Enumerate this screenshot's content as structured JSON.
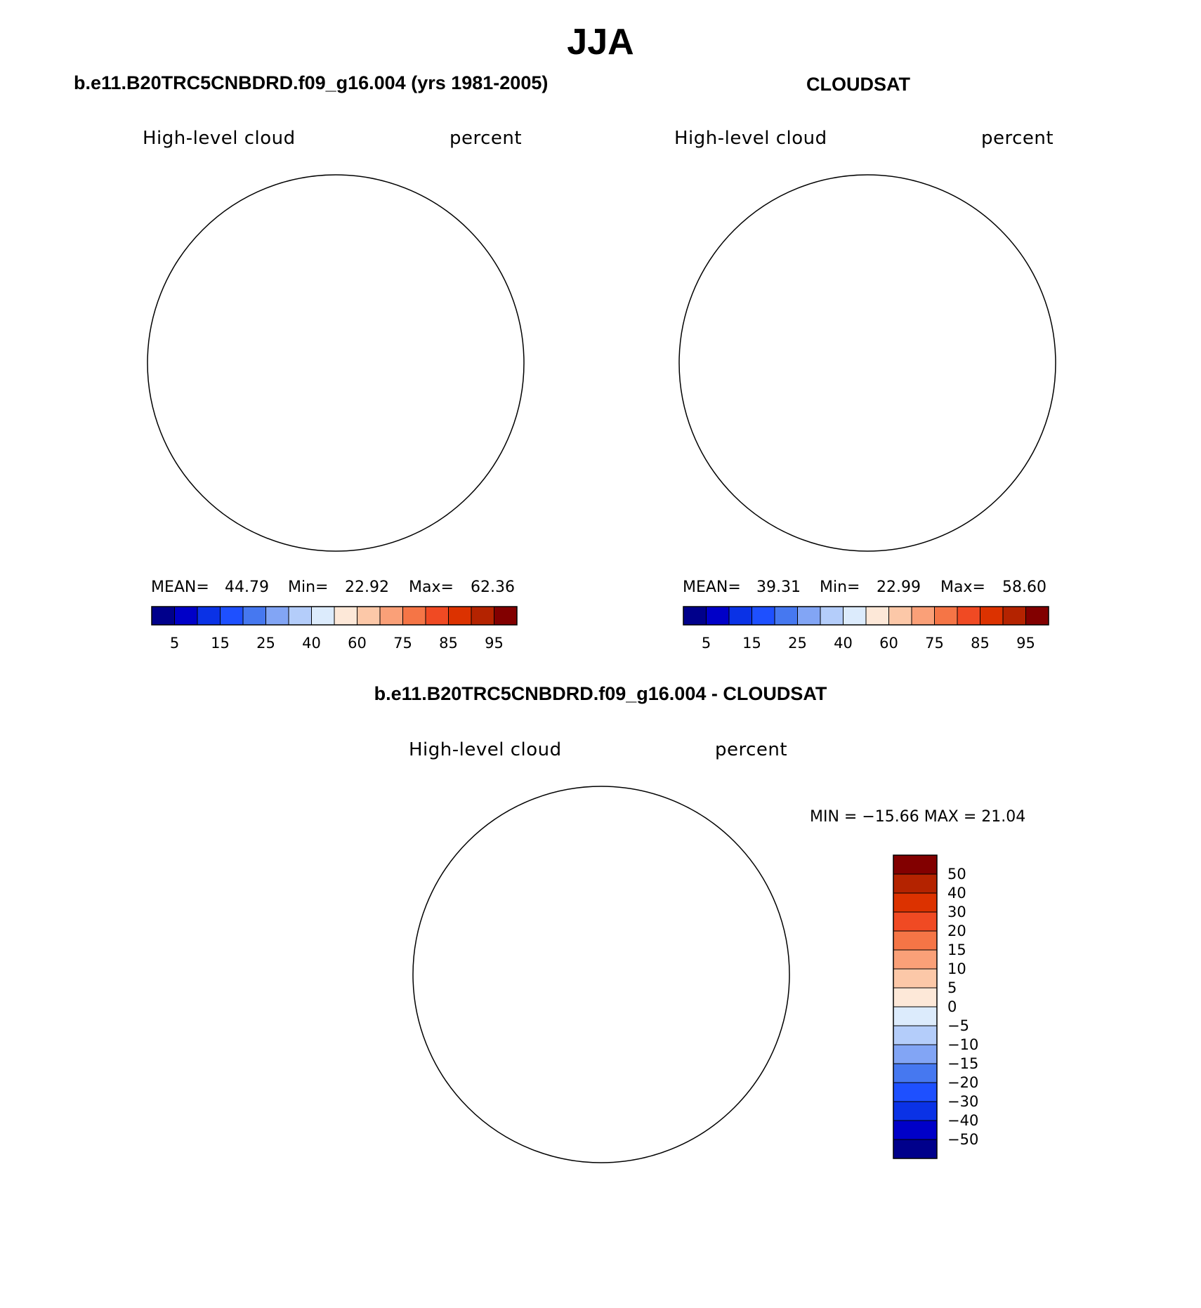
{
  "title": "JJA",
  "panels": [
    {
      "id": "model",
      "title": "b.e11.B20TRC5CNBDRD.f09_g16.004 (yrs 1981-2005)",
      "variable": "High-level cloud",
      "units": "percent",
      "stats": {
        "mean_label": "MEAN=",
        "mean": "44.79",
        "min_label": "Min=",
        "min": "22.92",
        "max_label": "Max=",
        "max": "62.36"
      }
    },
    {
      "id": "obs",
      "title": "CLOUDSAT",
      "variable": "High-level cloud",
      "units": "percent",
      "stats": {
        "mean_label": "MEAN=",
        "mean": "39.31",
        "min_label": "Min=",
        "min": "22.99",
        "max_label": "Max=",
        "max": "58.60"
      }
    },
    {
      "id": "diff",
      "title": "b.e11.B20TRC5CNBDRD.f09_g16.004 - CLOUDSAT",
      "variable": "High-level cloud",
      "units": "percent",
      "stats_text": "MIN = −15.66 MAX =  21.04"
    }
  ],
  "colorbar_abs": {
    "colors": [
      "#00008b",
      "#0000c8",
      "#0a32e6",
      "#1e50ff",
      "#4678f0",
      "#82a5f5",
      "#b4cdfa",
      "#dcebfc",
      "#fde8d8",
      "#fcc8a8",
      "#faa078",
      "#f57546",
      "#f04a23",
      "#dc3200",
      "#b42300",
      "#820000"
    ],
    "labels": [
      "5",
      "15",
      "25",
      "40",
      "60",
      "75",
      "85",
      "95"
    ]
  },
  "colorbar_diff": {
    "colors": [
      "#820000",
      "#b42300",
      "#dc3200",
      "#f04a23",
      "#f57546",
      "#faa078",
      "#fcc8a8",
      "#fde8d8",
      "#dcebfc",
      "#b4cdfa",
      "#82a5f5",
      "#4678f0",
      "#1e50ff",
      "#0a32e6",
      "#0000c8",
      "#00008b"
    ],
    "labels": [
      "50",
      "40",
      "30",
      "20",
      "15",
      "10",
      "5",
      "0",
      "−5",
      "−10",
      "−15",
      "−20",
      "−30",
      "−40",
      "−50"
    ]
  },
  "map_colors": {
    "very_light_blue": "#dcebfc",
    "light_blue": "#b4cdfa",
    "mid_blue": "#82a5f5",
    "blue": "#4678f0",
    "deep_blue": "#1e50ff",
    "light_orange": "#fde8d8",
    "peach": "#fcc8a8",
    "salmon": "#faa078",
    "orange": "#f57546",
    "red_orange": "#f04a23",
    "coast": "#000000"
  }
}
